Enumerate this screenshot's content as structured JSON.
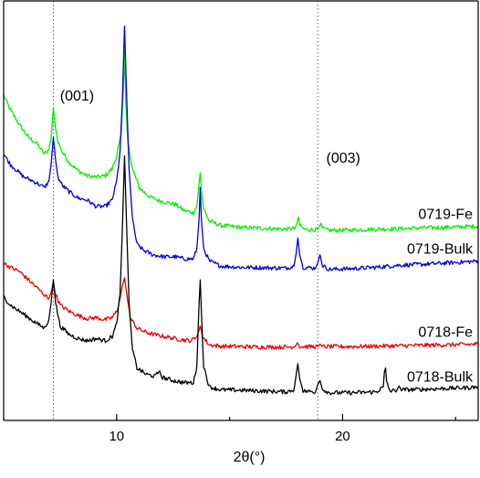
{
  "chart_data": {
    "type": "line",
    "title": "",
    "xlabel": "2θ(°)",
    "ylabel": "",
    "xlim": [
      5,
      26
    ],
    "ylim": [
      0,
      100
    ],
    "x_ticks": [
      10,
      20
    ],
    "y_ticks_shown": false,
    "grid": false,
    "reference_lines": [
      {
        "x": 7.2,
        "label": "(001)"
      },
      {
        "x": 18.9,
        "label": "(003)"
      }
    ],
    "series": [
      {
        "name": "0719-Fe",
        "color": "#00ee00",
        "points": [
          [
            5.0,
            77.5
          ],
          [
            5.3,
            74.0
          ],
          [
            5.7,
            70.5
          ],
          [
            6.1,
            67.5
          ],
          [
            6.5,
            65.8
          ],
          [
            6.8,
            63.5
          ],
          [
            7.0,
            64.5
          ],
          [
            7.1,
            67.5
          ],
          [
            7.2,
            74.5
          ],
          [
            7.3,
            69.5
          ],
          [
            7.4,
            66.5
          ],
          [
            7.6,
            64.0
          ],
          [
            7.9,
            61.5
          ],
          [
            8.3,
            59.5
          ],
          [
            8.7,
            58.3
          ],
          [
            9.1,
            58.0
          ],
          [
            9.5,
            58.3
          ],
          [
            9.8,
            60.0
          ],
          [
            10.0,
            63.0
          ],
          [
            10.2,
            68.0
          ],
          [
            10.3,
            79.0
          ],
          [
            10.35,
            88.0
          ],
          [
            10.4,
            77.0
          ],
          [
            10.5,
            66.0
          ],
          [
            10.7,
            60.0
          ],
          [
            11.0,
            55.5
          ],
          [
            11.4,
            53.5
          ],
          [
            11.8,
            52.5
          ],
          [
            12.2,
            52.0
          ],
          [
            12.6,
            51.5
          ],
          [
            13.0,
            50.0
          ],
          [
            13.4,
            49.5
          ],
          [
            13.55,
            51.0
          ],
          [
            13.65,
            56.5
          ],
          [
            13.7,
            59.0
          ],
          [
            13.75,
            55.0
          ],
          [
            13.85,
            50.5
          ],
          [
            14.1,
            47.5
          ],
          [
            14.6,
            46.5
          ],
          [
            15.5,
            46.0
          ],
          [
            16.5,
            45.8
          ],
          [
            17.5,
            45.6
          ],
          [
            17.9,
            45.8
          ],
          [
            18.0,
            47.5
          ],
          [
            18.05,
            48.5
          ],
          [
            18.1,
            46.5
          ],
          [
            18.3,
            45.5
          ],
          [
            18.9,
            45.5
          ],
          [
            19.0,
            46.5
          ],
          [
            19.05,
            47.0
          ],
          [
            19.1,
            45.8
          ],
          [
            19.4,
            45.3
          ],
          [
            20.5,
            45.4
          ],
          [
            21.5,
            45.6
          ],
          [
            22.5,
            45.7
          ],
          [
            23.5,
            45.9
          ],
          [
            24.5,
            46.0
          ],
          [
            25.5,
            46.2
          ],
          [
            26.0,
            46.3
          ]
        ]
      },
      {
        "name": "0719-Bulk",
        "color": "#0000dd",
        "points": [
          [
            5.0,
            63.5
          ],
          [
            5.3,
            61.0
          ],
          [
            5.6,
            59.5
          ],
          [
            5.9,
            58.0
          ],
          [
            6.2,
            57.3
          ],
          [
            6.5,
            56.5
          ],
          [
            6.8,
            55.5
          ],
          [
            7.0,
            57.0
          ],
          [
            7.1,
            61.0
          ],
          [
            7.2,
            67.5
          ],
          [
            7.3,
            62.0
          ],
          [
            7.4,
            58.0
          ],
          [
            7.6,
            56.0
          ],
          [
            7.9,
            54.5
          ],
          [
            8.3,
            53.0
          ],
          [
            8.7,
            52.5
          ],
          [
            9.1,
            51.0
          ],
          [
            9.5,
            51.0
          ],
          [
            9.8,
            52.5
          ],
          [
            10.0,
            57.0
          ],
          [
            10.15,
            64.0
          ],
          [
            10.25,
            76.0
          ],
          [
            10.35,
            94.0
          ],
          [
            10.45,
            76.0
          ],
          [
            10.55,
            60.0
          ],
          [
            10.7,
            48.0
          ],
          [
            10.9,
            42.0
          ],
          [
            11.2,
            40.5
          ],
          [
            11.6,
            39.5
          ],
          [
            12.1,
            39.0
          ],
          [
            12.6,
            39.0
          ],
          [
            13.0,
            38.5
          ],
          [
            13.4,
            38.5
          ],
          [
            13.55,
            41.0
          ],
          [
            13.65,
            48.0
          ],
          [
            13.7,
            55.5
          ],
          [
            13.75,
            48.0
          ],
          [
            13.85,
            41.0
          ],
          [
            14.1,
            38.0
          ],
          [
            14.6,
            36.8
          ],
          [
            15.5,
            36.5
          ],
          [
            16.5,
            36.4
          ],
          [
            17.5,
            36.3
          ],
          [
            17.85,
            36.8
          ],
          [
            17.95,
            40.0
          ],
          [
            18.02,
            43.5
          ],
          [
            18.1,
            39.5
          ],
          [
            18.25,
            36.5
          ],
          [
            18.8,
            36.3
          ],
          [
            18.9,
            37.5
          ],
          [
            19.0,
            39.5
          ],
          [
            19.1,
            37.0
          ],
          [
            19.4,
            36.0
          ],
          [
            20.5,
            36.2
          ],
          [
            21.5,
            36.5
          ],
          [
            22.5,
            37.0
          ],
          [
            23.5,
            37.2
          ],
          [
            24.5,
            37.5
          ],
          [
            25.5,
            37.8
          ],
          [
            26.0,
            38.0
          ]
        ]
      },
      {
        "name": "0718-Fe",
        "color": "#ee0000",
        "points": [
          [
            5.0,
            37.5
          ],
          [
            5.3,
            36.5
          ],
          [
            5.7,
            35.5
          ],
          [
            6.1,
            33.5
          ],
          [
            6.5,
            31.5
          ],
          [
            6.8,
            30.0
          ],
          [
            7.0,
            29.0
          ],
          [
            7.1,
            30.5
          ],
          [
            7.2,
            33.0
          ],
          [
            7.3,
            30.0
          ],
          [
            7.5,
            27.5
          ],
          [
            7.9,
            26.0
          ],
          [
            8.3,
            25.0
          ],
          [
            8.7,
            24.3
          ],
          [
            9.1,
            24.5
          ],
          [
            9.5,
            24.0
          ],
          [
            9.8,
            24.5
          ],
          [
            10.0,
            26.0
          ],
          [
            10.15,
            29.0
          ],
          [
            10.25,
            32.0
          ],
          [
            10.35,
            34.0
          ],
          [
            10.45,
            30.0
          ],
          [
            10.6,
            24.5
          ],
          [
            10.9,
            22.0
          ],
          [
            11.3,
            21.0
          ],
          [
            11.8,
            20.3
          ],
          [
            12.3,
            19.8
          ],
          [
            12.8,
            19.3
          ],
          [
            13.3,
            19.0
          ],
          [
            13.55,
            20.0
          ],
          [
            13.65,
            21.5
          ],
          [
            13.7,
            22.5
          ],
          [
            13.8,
            20.0
          ],
          [
            14.1,
            18.0
          ],
          [
            14.6,
            17.7
          ],
          [
            15.5,
            17.6
          ],
          [
            16.5,
            17.5
          ],
          [
            17.5,
            17.5
          ],
          [
            17.9,
            17.6
          ],
          [
            18.0,
            18.5
          ],
          [
            18.1,
            17.6
          ],
          [
            18.9,
            17.6
          ],
          [
            19.0,
            18.2
          ],
          [
            19.1,
            17.6
          ],
          [
            20.5,
            17.6
          ],
          [
            21.5,
            17.7
          ],
          [
            22.5,
            17.8
          ],
          [
            23.5,
            17.9
          ],
          [
            24.5,
            18.0
          ],
          [
            25.5,
            18.1
          ],
          [
            26.0,
            18.2
          ]
        ]
      },
      {
        "name": "0718-Bulk",
        "color": "#000000",
        "points": [
          [
            5.0,
            29.5
          ],
          [
            5.3,
            27.5
          ],
          [
            5.7,
            26.0
          ],
          [
            6.1,
            24.5
          ],
          [
            6.5,
            23.0
          ],
          [
            6.8,
            22.0
          ],
          [
            7.0,
            24.0
          ],
          [
            7.1,
            28.0
          ],
          [
            7.2,
            33.5
          ],
          [
            7.3,
            28.0
          ],
          [
            7.5,
            22.5
          ],
          [
            7.9,
            20.5
          ],
          [
            8.3,
            19.5
          ],
          [
            8.7,
            19.0
          ],
          [
            9.1,
            19.5
          ],
          [
            9.5,
            19.0
          ],
          [
            9.8,
            20.0
          ],
          [
            10.0,
            23.0
          ],
          [
            10.15,
            30.0
          ],
          [
            10.25,
            45.0
          ],
          [
            10.35,
            63.0
          ],
          [
            10.45,
            45.0
          ],
          [
            10.55,
            28.0
          ],
          [
            10.7,
            17.0
          ],
          [
            10.9,
            12.5
          ],
          [
            11.3,
            11.0
          ],
          [
            11.7,
            10.5
          ],
          [
            11.9,
            11.8
          ],
          [
            12.0,
            10.3
          ],
          [
            12.5,
            9.5
          ],
          [
            13.0,
            9.0
          ],
          [
            13.4,
            9.0
          ],
          [
            13.55,
            13.0
          ],
          [
            13.65,
            28.0
          ],
          [
            13.7,
            33.5
          ],
          [
            13.75,
            26.0
          ],
          [
            13.85,
            13.0
          ],
          [
            14.1,
            8.0
          ],
          [
            14.6,
            7.3
          ],
          [
            15.5,
            7.2
          ],
          [
            16.5,
            7.0
          ],
          [
            17.5,
            6.8
          ],
          [
            17.85,
            7.3
          ],
          [
            17.95,
            11.0
          ],
          [
            18.02,
            13.5
          ],
          [
            18.1,
            10.0
          ],
          [
            18.25,
            7.0
          ],
          [
            18.8,
            6.8
          ],
          [
            18.9,
            8.5
          ],
          [
            19.0,
            9.5
          ],
          [
            19.1,
            7.5
          ],
          [
            19.4,
            6.6
          ],
          [
            20.5,
            6.6
          ],
          [
            21.5,
            6.8
          ],
          [
            21.8,
            8.0
          ],
          [
            21.85,
            11.5
          ],
          [
            21.9,
            12.5
          ],
          [
            21.95,
            9.0
          ],
          [
            22.1,
            7.0
          ],
          [
            22.4,
            7.2
          ],
          [
            22.5,
            8.2
          ],
          [
            22.6,
            7.3
          ],
          [
            23.5,
            7.4
          ],
          [
            24.5,
            7.6
          ],
          [
            25.5,
            7.8
          ],
          [
            26.0,
            8.0
          ]
        ]
      }
    ]
  }
}
